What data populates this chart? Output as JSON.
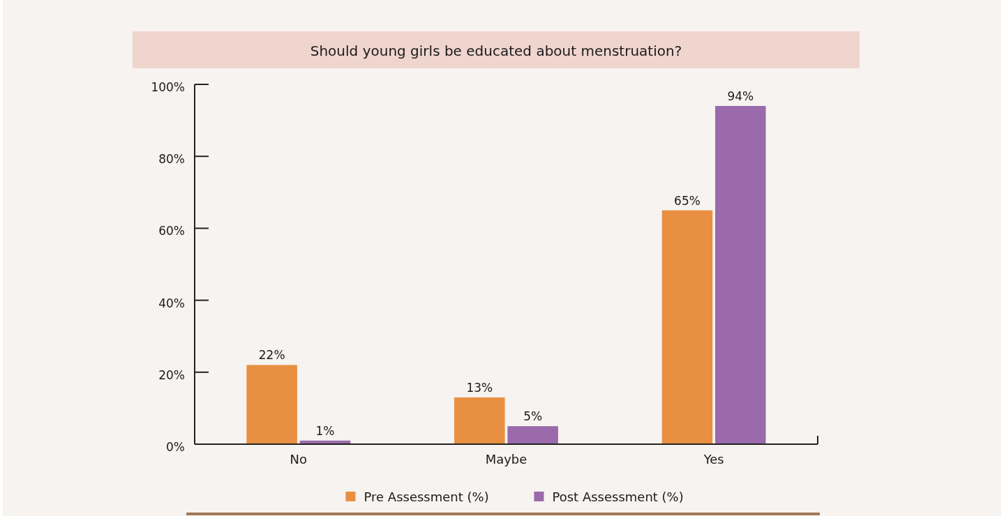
{
  "chart_data": {
    "type": "bar",
    "title": "Should young girls be educated about menstruation?",
    "categories": [
      "No",
      "Maybe",
      "Yes"
    ],
    "series": [
      {
        "name": "Pre Assessment (%)",
        "color": "#e88f42",
        "values": [
          22,
          13,
          65
        ],
        "value_labels": [
          "22%",
          "13%",
          "65%"
        ]
      },
      {
        "name": "Post Assessment (%)",
        "color": "#9a6aab",
        "values": [
          1,
          5,
          94
        ],
        "value_labels": [
          "1%",
          "5%",
          "94%"
        ]
      }
    ],
    "ylim": [
      0,
      100
    ],
    "yticks": [
      {
        "value": 0,
        "label": "0%"
      },
      {
        "value": 20,
        "label": "20%"
      },
      {
        "value": 40,
        "label": "40%"
      },
      {
        "value": 60,
        "label": "60%"
      },
      {
        "value": 80,
        "label": "80%"
      },
      {
        "value": 100,
        "label": "100%"
      }
    ],
    "grid": false,
    "legend": "bottom"
  }
}
